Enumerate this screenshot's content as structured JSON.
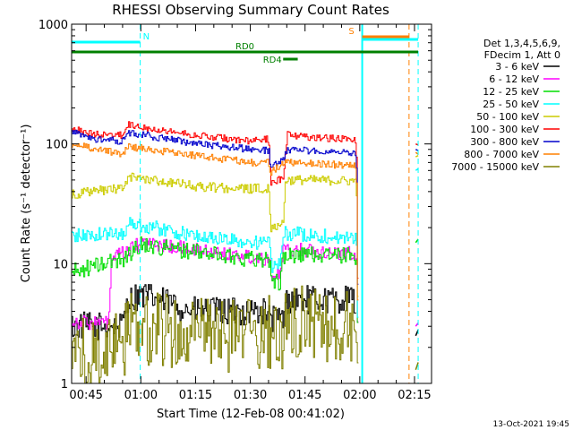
{
  "chart_data": {
    "type": "line",
    "title": "RHESSI Observing Summary Count Rates",
    "xlabel": "Start Time (12-Feb-08 00:41:02)",
    "ylabel": "Count Rate (s⁻¹ detector⁻¹)",
    "ylog": true,
    "ylim": [
      1,
      1000
    ],
    "xlim": [
      "00:41:02",
      "02:19:40"
    ],
    "x_ticks": [
      "00:45",
      "01:00",
      "01:15",
      "01:30",
      "01:45",
      "02:00",
      "02:15"
    ],
    "y_ticks": [
      "1",
      "10",
      "100",
      "1000"
    ],
    "timestamp": "13-Oct-2021 19:45",
    "legend": {
      "position": "right",
      "header": [
        "Det 1,3,4,5,6,9,",
        "FDecim 1, Att 0"
      ],
      "entries": [
        {
          "label": "3 - 6 keV",
          "color": "#000000"
        },
        {
          "label": "6 - 12 keV",
          "color": "#ff00ff"
        },
        {
          "label": "12 - 25 keV",
          "color": "#00dd00"
        },
        {
          "label": "25 - 50 keV",
          "color": "#00ffff"
        },
        {
          "label": "50 - 100 keV",
          "color": "#cccc00"
        },
        {
          "label": "100 - 300 keV",
          "color": "#ff0000"
        },
        {
          "label": "300 - 800 keV",
          "color": "#0000cc"
        },
        {
          "label": "800 - 7000 keV",
          "color": "#ff8000"
        },
        {
          "label": "7000 - 15000 keV",
          "color": "#808000"
        }
      ]
    },
    "flag_bars": [
      {
        "label": "N",
        "color": "#00ffff",
        "start": "00:41:02",
        "end": "00:59:50"
      },
      {
        "label": "",
        "color": "#00ffff",
        "start": "02:00:40",
        "end": "02:16:00"
      },
      {
        "label": "S",
        "color": "#ff8000",
        "start": "02:00:40",
        "end": "02:13:30"
      },
      {
        "label": "RD0",
        "color": "#008000",
        "start": "00:41:02",
        "end": "02:16:00"
      },
      {
        "label": "RD4",
        "color": "#008000",
        "start": "01:39:00",
        "end": "01:43:00"
      }
    ],
    "vertical_markers": [
      {
        "time": "00:59:50",
        "color": "#00ffff",
        "style": "dashed"
      },
      {
        "time": "02:00:40",
        "color": "#00ffff",
        "style": "solid"
      },
      {
        "time": "02:13:30",
        "color": "#ff8000",
        "style": "dashed"
      },
      {
        "time": "02:16:00",
        "color": "#00ffff",
        "style": "dashed"
      }
    ],
    "series": [
      {
        "name": "3 - 6 keV",
        "color": "#000000",
        "jitter": 0.12,
        "points": [
          [
            "00:41:02",
            3
          ],
          [
            "00:55:00",
            3
          ],
          [
            "00:56:00",
            5
          ],
          [
            "01:00:00",
            5.5
          ],
          [
            "01:15:00",
            4
          ],
          [
            "01:30:00",
            4
          ],
          [
            "01:34:30",
            4
          ],
          [
            "01:35:00",
            3.5
          ],
          [
            "01:39:00",
            3.5
          ],
          [
            "01:40:00",
            5
          ],
          [
            "01:45:00",
            5
          ],
          [
            "01:58:30",
            5
          ],
          [
            "01:59:00",
            3
          ]
        ],
        "segments": [
          [
            "02:15:20",
            2.5
          ],
          [
            "02:16:00",
            2.8
          ]
        ]
      },
      {
        "name": "6 - 12 keV",
        "color": "#ff00ff",
        "jitter": 0.06,
        "points": [
          [
            "00:41:02",
            3.3
          ],
          [
            "00:47:00",
            3.2
          ],
          [
            "00:51:00",
            3.2
          ],
          [
            "00:52:00",
            11
          ],
          [
            "00:57:00",
            13
          ],
          [
            "01:00:00",
            15
          ],
          [
            "01:15:00",
            13
          ],
          [
            "01:30:00",
            11.5
          ],
          [
            "01:35:00",
            11
          ],
          [
            "01:36:00",
            8
          ],
          [
            "01:38:00",
            8
          ],
          [
            "01:39:00",
            13
          ],
          [
            "01:45:00",
            13
          ],
          [
            "01:59:00",
            12
          ],
          [
            "01:59:30",
            2
          ]
        ],
        "segments": [
          [
            "02:15:20",
            3
          ],
          [
            "02:16:00",
            3.2
          ]
        ]
      },
      {
        "name": "12 - 25 keV",
        "color": "#00dd00",
        "jitter": 0.07,
        "points": [
          [
            "00:41:02",
            8.5
          ],
          [
            "00:55:00",
            11
          ],
          [
            "01:00:00",
            14.5
          ],
          [
            "01:15:00",
            12.5
          ],
          [
            "01:30:00",
            11
          ],
          [
            "01:35:00",
            11
          ],
          [
            "01:36:00",
            7
          ],
          [
            "01:38:00",
            7
          ],
          [
            "01:39:00",
            11.5
          ],
          [
            "01:45:00",
            12
          ],
          [
            "01:59:00",
            11.5
          ],
          [
            "01:59:30",
            2
          ]
        ],
        "segments": [
          [
            "02:15:20",
            15
          ],
          [
            "02:16:00",
            16
          ]
        ]
      },
      {
        "name": "25 - 50 keV",
        "color": "#00ffff",
        "jitter": 0.06,
        "points": [
          [
            "00:41:02",
            17
          ],
          [
            "00:55:00",
            18
          ],
          [
            "00:57:00",
            22
          ],
          [
            "01:00:00",
            21
          ],
          [
            "01:15:00",
            17
          ],
          [
            "01:30:00",
            15
          ],
          [
            "01:35:00",
            15
          ],
          [
            "01:36:00",
            9
          ],
          [
            "01:38:00",
            10
          ],
          [
            "01:39:00",
            18
          ],
          [
            "01:45:00",
            17.5
          ],
          [
            "01:59:00",
            16
          ],
          [
            "01:59:30",
            2
          ]
        ],
        "segments": [
          [
            "02:15:20",
            60
          ],
          [
            "02:16:00",
            62
          ]
        ]
      },
      {
        "name": "50 - 100 keV",
        "color": "#cccc00",
        "jitter": 0.04,
        "points": [
          [
            "00:41:02",
            38
          ],
          [
            "00:55:00",
            43
          ],
          [
            "00:57:00",
            53
          ],
          [
            "01:00:00",
            52
          ],
          [
            "01:15:00",
            44
          ],
          [
            "01:30:00",
            42
          ],
          [
            "01:35:00",
            43
          ],
          [
            "01:35:30",
            20
          ],
          [
            "01:39:00",
            22
          ],
          [
            "01:39:30",
            50
          ],
          [
            "01:45:00",
            50
          ],
          [
            "01:59:00",
            49
          ],
          [
            "01:59:30",
            2
          ]
        ],
        "segments": [
          [
            "02:15:20",
            78
          ],
          [
            "02:16:00",
            80
          ]
        ]
      },
      {
        "name": "100 - 300 keV",
        "color": "#ff0000",
        "jitter": 0.03,
        "points": [
          [
            "00:41:02",
            135
          ],
          [
            "00:47:00",
            120
          ],
          [
            "00:55:00",
            118
          ],
          [
            "00:56:00",
            145
          ],
          [
            "01:00:00",
            140
          ],
          [
            "01:15:00",
            118
          ],
          [
            "01:30:00",
            105
          ],
          [
            "01:35:00",
            110
          ],
          [
            "01:35:30",
            48
          ],
          [
            "01:39:00",
            52
          ],
          [
            "01:40:00",
            120
          ],
          [
            "01:45:00",
            115
          ],
          [
            "01:59:00",
            108
          ],
          [
            "01:59:30",
            2
          ]
        ],
        "segments": [
          [
            "02:15:20",
            100
          ],
          [
            "02:16:00",
            98
          ]
        ]
      },
      {
        "name": "300 - 800 keV",
        "color": "#0000cc",
        "jitter": 0.03,
        "points": [
          [
            "00:41:02",
            125
          ],
          [
            "00:47:00",
            110
          ],
          [
            "00:55:00",
            105
          ],
          [
            "00:56:00",
            125
          ],
          [
            "01:00:00",
            120
          ],
          [
            "01:15:00",
            100
          ],
          [
            "01:30:00",
            90
          ],
          [
            "01:35:00",
            88
          ],
          [
            "01:35:30",
            65
          ],
          [
            "01:39:00",
            72
          ],
          [
            "01:40:00",
            90
          ],
          [
            "01:45:00",
            88
          ],
          [
            "01:59:00",
            85
          ],
          [
            "01:59:30",
            2
          ]
        ],
        "segments": [
          [
            "02:15:20",
            90
          ],
          [
            "02:16:00",
            88
          ]
        ]
      },
      {
        "name": "800 - 7000 keV",
        "color": "#ff8000",
        "jitter": 0.03,
        "points": [
          [
            "00:41:02",
            100
          ],
          [
            "00:55:00",
            82
          ],
          [
            "00:56:00",
            95
          ],
          [
            "01:00:00",
            92
          ],
          [
            "01:15:00",
            80
          ],
          [
            "01:30:00",
            70
          ],
          [
            "01:35:00",
            70
          ],
          [
            "01:35:30",
            58
          ],
          [
            "01:39:00",
            68
          ],
          [
            "01:40:00",
            70
          ],
          [
            "01:45:00",
            70
          ],
          [
            "01:59:00",
            65
          ],
          [
            "01:59:30",
            1.3
          ]
        ],
        "segments": [
          [
            "02:15:20",
            85
          ],
          [
            "02:16:00",
            82
          ]
        ]
      },
      {
        "name": "7000 - 15000 keV",
        "color": "#808000",
        "jitter": 0.32,
        "points": [
          [
            "00:41:02",
            1.6
          ],
          [
            "00:55:00",
            2
          ],
          [
            "00:56:00",
            3
          ],
          [
            "01:30:00",
            2.4
          ],
          [
            "01:35:00",
            2.6
          ],
          [
            "01:39:00",
            2.6
          ],
          [
            "01:40:00",
            3.2
          ],
          [
            "01:55:00",
            3
          ],
          [
            "01:59:00",
            2.6
          ],
          [
            "01:59:30",
            1
          ]
        ],
        "segments": [
          [
            "02:15:20",
            1.3
          ],
          [
            "02:16:00",
            1.5
          ]
        ]
      }
    ]
  }
}
